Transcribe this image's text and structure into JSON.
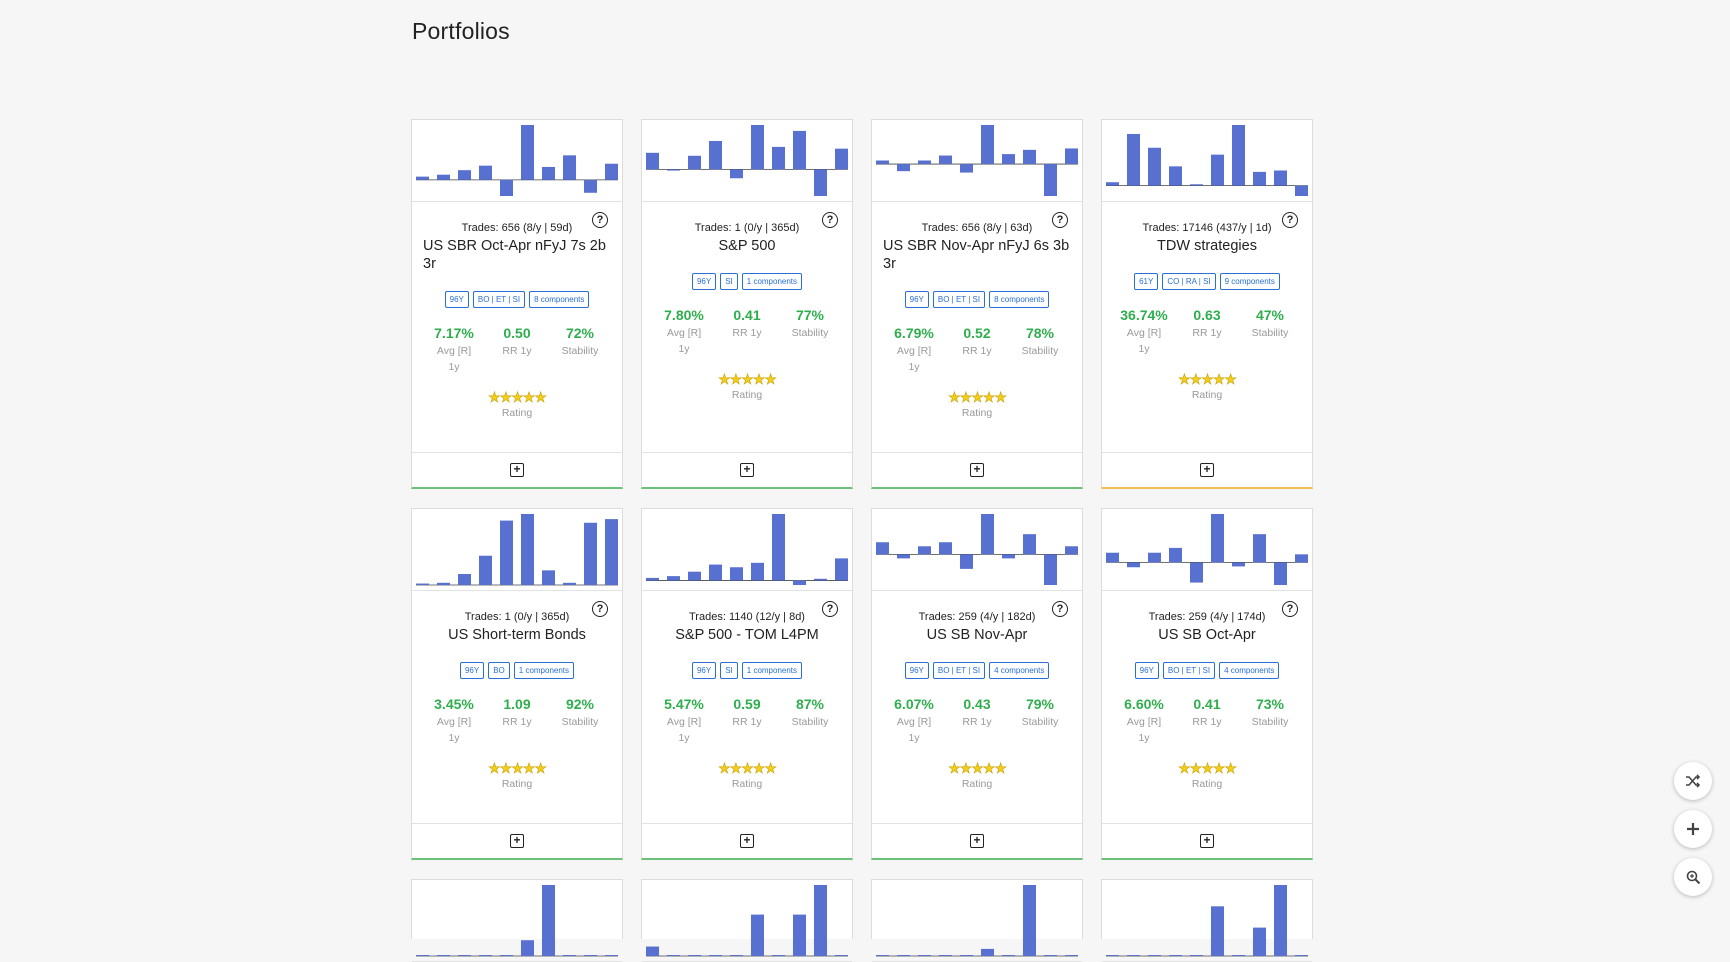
{
  "page": {
    "title": "Portfolios"
  },
  "colors": {
    "bar": "#5870cf",
    "good": "#2fae4e",
    "star": "#f4cf1a",
    "tag": "#2a6fd6",
    "footer_ok": "#6cc27a",
    "footer_warn": "#f0c050"
  },
  "labels": {
    "avg": "Avg [R]",
    "avg2": "1y",
    "rr": "RR 1y",
    "stability": "Stability",
    "rating": "Rating",
    "stars": "★★★★★",
    "help": "?",
    "add": "+"
  },
  "cards": [
    {
      "trades": "Trades: 656 (8/y | 59d)",
      "name": "US SBR Oct-Apr nFyJ 7s 2b 3r",
      "tags": [
        "96Y",
        "BO | ET | SI",
        "8 components"
      ],
      "avg": "7.17%",
      "rr": "0.50",
      "stability": "72%",
      "footer": "ok",
      "bars": [
        0.05,
        0.08,
        0.15,
        0.22,
        -0.25,
        0.85,
        0.2,
        0.38,
        -0.2,
        0.25
      ]
    },
    {
      "trades": "Trades: 1 (0/y | 365d)",
      "name": "S&P 500",
      "tags": [
        "96Y",
        "SI",
        "1 components"
      ],
      "avg": "7.80%",
      "rr": "0.41",
      "stability": "77%",
      "footer": "ok",
      "bars": [
        0.28,
        -0.02,
        0.23,
        0.48,
        -0.15,
        0.75,
        0.38,
        0.65,
        -0.45,
        0.35
      ]
    },
    {
      "trades": "Trades: 656 (8/y | 63d)",
      "name": "US SBR Nov-Apr nFyJ 6s 3b 3r",
      "tags": [
        "96Y",
        "BO | ET | SI",
        "8 components"
      ],
      "avg": "6.79%",
      "rr": "0.52",
      "stability": "78%",
      "footer": "ok",
      "bars": [
        0.05,
        -0.1,
        0.05,
        0.12,
        -0.12,
        0.55,
        0.14,
        0.2,
        -0.45,
        0.22
      ]
    },
    {
      "trades": "Trades: 17146 (437/y | 1d)",
      "name": "TDW strategies",
      "tags": [
        "61Y",
        "CO | RA | SI",
        "9 components"
      ],
      "avg": "36.74%",
      "rr": "0.63",
      "stability": "47%",
      "footer": "warn",
      "bars": [
        0.05,
        0.75,
        0.55,
        0.28,
        0.02,
        0.45,
        0.88,
        0.2,
        0.22,
        -0.15
      ]
    },
    {
      "trades": "Trades: 1 (0/y | 365d)",
      "name": "US Short-term Bonds",
      "tags": [
        "96Y",
        "BO",
        "1 components"
      ],
      "avg": "3.45%",
      "rr": "1.09",
      "stability": "92%",
      "footer": "ok",
      "bars": [
        0.02,
        0.03,
        0.15,
        0.4,
        0.88,
        0.97,
        0.2,
        0.03,
        0.85,
        0.9
      ]
    },
    {
      "trades": "Trades: 1140 (12/y | 8d)",
      "name": "S&P 500 - TOM L4PM",
      "tags": [
        "96Y",
        "SI",
        "1 components"
      ],
      "avg": "5.47%",
      "rr": "0.59",
      "stability": "87%",
      "footer": "ok",
      "bars": [
        0.03,
        0.05,
        0.1,
        0.18,
        0.15,
        0.2,
        0.75,
        -0.05,
        0.02,
        0.25
      ]
    },
    {
      "trades": "Trades: 259 (4/y | 182d)",
      "name": "US SB Nov-Apr",
      "tags": [
        "96Y",
        "BO | ET | SI",
        "4 components"
      ],
      "avg": "6.07%",
      "rr": "0.43",
      "stability": "79%",
      "footer": "ok",
      "bars": [
        0.15,
        -0.05,
        0.1,
        0.15,
        -0.18,
        0.5,
        -0.05,
        0.25,
        -0.38,
        0.1
      ]
    },
    {
      "trades": "Trades: 259 (4/y | 174d)",
      "name": "US SB Oct-Apr",
      "tags": [
        "96Y",
        "BO | ET | SI",
        "4 components"
      ],
      "avg": "6.60%",
      "rr": "0.41",
      "stability": "73%",
      "footer": "ok",
      "bars": [
        0.12,
        -0.06,
        0.12,
        0.18,
        -0.25,
        0.6,
        -0.05,
        0.35,
        -0.28,
        0.1
      ]
    },
    {
      "bars": [
        0.0,
        0.0,
        0.0,
        0.0,
        0.0,
        0.1,
        0.45,
        0.0,
        0.0,
        0.0
      ]
    },
    {
      "bars": [
        0.08,
        0.0,
        0.0,
        0.0,
        0.0,
        0.35,
        0.0,
        0.35,
        0.6,
        0.0
      ]
    },
    {
      "bars": [
        0.0,
        0.0,
        0.0,
        0.0,
        0.0,
        0.05,
        0.0,
        0.5,
        0.0,
        0.0
      ]
    },
    {
      "bars": [
        0.0,
        0.0,
        0.0,
        0.0,
        0.0,
        0.35,
        0.0,
        0.2,
        0.5,
        0.0
      ]
    }
  ],
  "fabs": [
    {
      "icon": "shuffle-icon"
    },
    {
      "icon": "plus-icon"
    },
    {
      "icon": "zoom-in-icon"
    }
  ]
}
